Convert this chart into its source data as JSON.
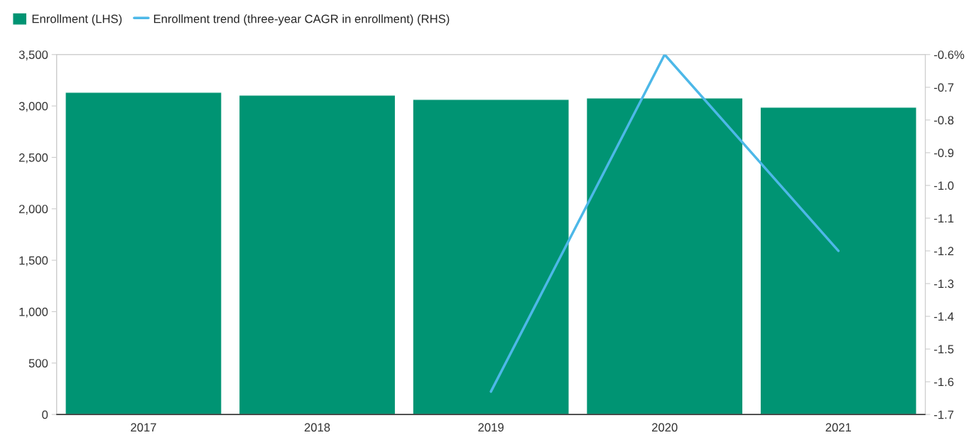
{
  "chart_data": {
    "type": "bar",
    "categories": [
      "2017",
      "2018",
      "2019",
      "2020",
      "2021"
    ],
    "series": [
      {
        "name": "Enrollment (LHS)",
        "color": "#009473",
        "values": [
          3133,
          3105,
          3064,
          3078,
          2988
        ]
      },
      {
        "name": "Enrollment trend (three-year CAGR in enrollment) (RHS)",
        "type": "line",
        "axis": "y2",
        "color": "#4db8e8",
        "values": [
          null,
          null,
          -1.63,
          -0.6,
          -1.2
        ]
      }
    ],
    "ylim": [
      0,
      3500
    ],
    "yticks": [
      0,
      500,
      {
        "value": 1000,
        "label": "1,000"
      },
      {
        "value": 1500,
        "label": "1,500"
      },
      {
        "value": 2000,
        "label": "2,000"
      },
      {
        "value": 2500,
        "label": "2,500"
      },
      {
        "value": 3000,
        "label": "3,000"
      },
      {
        "value": 3500,
        "label": "3,500"
      }
    ],
    "y2lim": [
      -1.7,
      -0.6
    ],
    "y2ticks": [
      {
        "value": -1.7,
        "label": "-1.7"
      },
      {
        "value": -1.6,
        "label": "-1.6"
      },
      {
        "value": -1.5,
        "label": "-1.5"
      },
      {
        "value": -1.4,
        "label": "-1.4"
      },
      {
        "value": -1.3,
        "label": "-1.3"
      },
      {
        "value": -1.2,
        "label": "-1.2"
      },
      {
        "value": -1.1,
        "label": "-1.1"
      },
      {
        "value": -1.0,
        "label": "-1.0"
      },
      {
        "value": -0.9,
        "label": "-0.9"
      },
      {
        "value": -0.8,
        "label": "-0.8"
      },
      {
        "value": -0.7,
        "label": "-0.7"
      },
      {
        "value": -0.6,
        "label": "-0.6%"
      }
    ],
    "grid": false,
    "legend": "top left",
    "marker": "none",
    "line_style": "solid"
  }
}
